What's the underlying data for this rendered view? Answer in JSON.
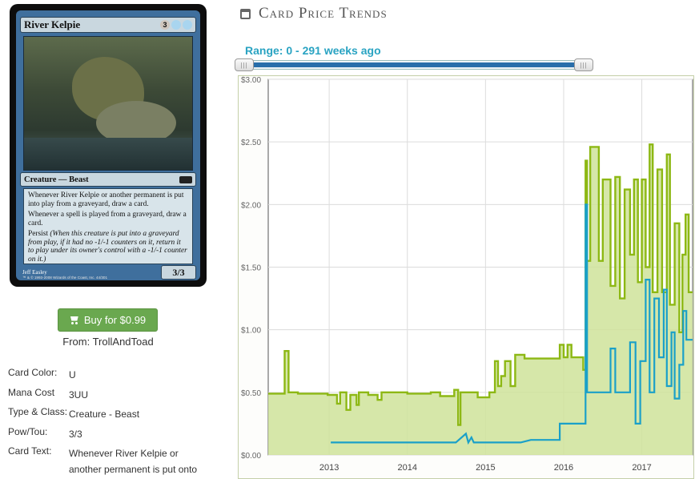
{
  "card": {
    "name": "River Kelpie",
    "mana_cost_symbols": [
      {
        "symbol": "3",
        "kind": "generic"
      },
      {
        "symbol": "U",
        "kind": "blue"
      },
      {
        "symbol": "U",
        "kind": "blue"
      }
    ],
    "type_line": "Creature — Beast",
    "rules_text": [
      "Whenever River Kelpie or another permanent is put into play from a graveyard, draw a card.",
      "Whenever a spell is played from a graveyard, draw a card."
    ],
    "persist_label": "Persist",
    "persist_reminder": "(When this creature is put into a graveyard from play, if it had no -1/-1 counters on it, return it to play under its owner's control with a -1/-1 counter on it.)",
    "power_toughness": "3/3",
    "artist": "Jeff Easley",
    "copyright": "™ & © 1993-2008 Wizards of the Coast, Inc. 44/301"
  },
  "buy": {
    "label": "Buy for $0.99",
    "from": "From: TrollAndToad"
  },
  "attributes": [
    {
      "key": "Card Color:",
      "value": "U"
    },
    {
      "key": "Mana Cost",
      "value": "3UU"
    },
    {
      "key": "Type & Class:",
      "value": "Creature - Beast"
    },
    {
      "key": "Pow/Tou:",
      "value": "3/3"
    },
    {
      "key": "Card Text:",
      "value": "Whenever River Kelpie or another permanent is put onto"
    }
  ],
  "price_section": {
    "title": "Card Price Trends",
    "range_label": "Range: 0 - 291 weeks ago",
    "range_min_weeks": 0,
    "range_max_weeks": 291
  },
  "colors": {
    "retail": "#8db814",
    "retail_fill": "#cfe39a",
    "buylist": "#1aa0c8",
    "slider": "#286eaa",
    "button": "#6aa84f"
  },
  "chart_data": {
    "type": "line",
    "ylim": [
      0,
      3
    ],
    "xlim": [
      2012.22,
      2017.65
    ],
    "y_ticks": [
      "$0.00",
      "$0.50",
      "$1.00",
      "$1.50",
      "$2.00",
      "$2.50",
      "$3.00"
    ],
    "x_ticks": [
      "2013",
      "2014",
      "2015",
      "2016",
      "2017"
    ],
    "grid": true,
    "legend": "none",
    "series": [
      {
        "points": [
          [
            2012.22,
            0.49
          ],
          [
            2012.43,
            0.49
          ],
          [
            2012.43,
            0.83
          ],
          [
            2012.48,
            0.83
          ],
          [
            2012.48,
            0.5
          ],
          [
            2012.6,
            0.5
          ],
          [
            2012.6,
            0.49
          ],
          [
            2012.98,
            0.49
          ],
          [
            2012.98,
            0.48
          ],
          [
            2013.1,
            0.48
          ],
          [
            2013.1,
            0.41
          ],
          [
            2013.14,
            0.41
          ],
          [
            2013.14,
            0.5
          ],
          [
            2013.22,
            0.5
          ],
          [
            2013.22,
            0.36
          ],
          [
            2013.27,
            0.36
          ],
          [
            2013.27,
            0.48
          ],
          [
            2013.35,
            0.48
          ],
          [
            2013.35,
            0.4
          ],
          [
            2013.38,
            0.4
          ],
          [
            2013.38,
            0.5
          ],
          [
            2013.5,
            0.5
          ],
          [
            2013.5,
            0.48
          ],
          [
            2013.62,
            0.48
          ],
          [
            2013.62,
            0.44
          ],
          [
            2013.67,
            0.44
          ],
          [
            2013.67,
            0.5
          ],
          [
            2014.0,
            0.5
          ],
          [
            2014.0,
            0.49
          ],
          [
            2014.3,
            0.49
          ],
          [
            2014.3,
            0.5
          ],
          [
            2014.42,
            0.5
          ],
          [
            2014.42,
            0.47
          ],
          [
            2014.6,
            0.47
          ],
          [
            2014.6,
            0.52
          ],
          [
            2014.65,
            0.52
          ],
          [
            2014.65,
            0.24
          ],
          [
            2014.68,
            0.24
          ],
          [
            2014.68,
            0.5
          ],
          [
            2014.9,
            0.5
          ],
          [
            2014.9,
            0.46
          ],
          [
            2015.05,
            0.46
          ],
          [
            2015.05,
            0.5
          ],
          [
            2015.12,
            0.5
          ],
          [
            2015.12,
            0.75
          ],
          [
            2015.16,
            0.75
          ],
          [
            2015.16,
            0.55
          ],
          [
            2015.2,
            0.55
          ],
          [
            2015.2,
            0.63
          ],
          [
            2015.25,
            0.63
          ],
          [
            2015.25,
            0.75
          ],
          [
            2015.32,
            0.75
          ],
          [
            2015.32,
            0.55
          ],
          [
            2015.38,
            0.55
          ],
          [
            2015.38,
            0.8
          ],
          [
            2015.5,
            0.8
          ],
          [
            2015.5,
            0.77
          ],
          [
            2015.95,
            0.77
          ],
          [
            2015.95,
            0.88
          ],
          [
            2016.0,
            0.88
          ],
          [
            2016.0,
            0.78
          ],
          [
            2016.05,
            0.78
          ],
          [
            2016.05,
            0.88
          ],
          [
            2016.1,
            0.88
          ],
          [
            2016.1,
            0.78
          ],
          [
            2016.25,
            0.78
          ],
          [
            2016.25,
            0.68
          ],
          [
            2016.28,
            0.68
          ],
          [
            2016.28,
            2.35
          ],
          [
            2016.3,
            2.35
          ],
          [
            2016.3,
            1.55
          ],
          [
            2016.34,
            1.55
          ],
          [
            2016.34,
            2.46
          ],
          [
            2016.45,
            2.46
          ],
          [
            2016.45,
            1.55
          ],
          [
            2016.5,
            1.55
          ],
          [
            2016.5,
            2.2
          ],
          [
            2016.6,
            2.2
          ],
          [
            2016.6,
            1.35
          ],
          [
            2016.66,
            1.35
          ],
          [
            2016.66,
            2.22
          ],
          [
            2016.72,
            2.22
          ],
          [
            2016.72,
            1.25
          ],
          [
            2016.78,
            1.25
          ],
          [
            2016.78,
            2.12
          ],
          [
            2016.85,
            2.12
          ],
          [
            2016.85,
            1.6
          ],
          [
            2016.9,
            1.6
          ],
          [
            2016.9,
            2.2
          ],
          [
            2016.95,
            2.2
          ],
          [
            2016.95,
            1.38
          ],
          [
            2017.0,
            1.38
          ],
          [
            2017.0,
            2.2
          ],
          [
            2017.05,
            2.2
          ],
          [
            2017.05,
            1.5
          ],
          [
            2017.1,
            1.5
          ],
          [
            2017.1,
            2.48
          ],
          [
            2017.14,
            2.48
          ],
          [
            2017.14,
            1.3
          ],
          [
            2017.2,
            1.3
          ],
          [
            2017.2,
            2.28
          ],
          [
            2017.26,
            2.28
          ],
          [
            2017.26,
            1.3
          ],
          [
            2017.32,
            1.3
          ],
          [
            2017.32,
            2.4
          ],
          [
            2017.36,
            2.4
          ],
          [
            2017.36,
            1.2
          ],
          [
            2017.42,
            1.2
          ],
          [
            2017.42,
            1.85
          ],
          [
            2017.48,
            1.85
          ],
          [
            2017.48,
            0.98
          ],
          [
            2017.52,
            0.98
          ],
          [
            2017.52,
            1.6
          ],
          [
            2017.56,
            1.6
          ],
          [
            2017.56,
            1.92
          ],
          [
            2017.6,
            1.92
          ],
          [
            2017.6,
            1.3
          ],
          [
            2017.65,
            1.3
          ]
        ]
      },
      {
        "points": [
          [
            2013.02,
            0.1
          ],
          [
            2014.62,
            0.1
          ],
          [
            2014.75,
            0.17
          ],
          [
            2014.78,
            0.1
          ],
          [
            2014.82,
            0.14
          ],
          [
            2014.85,
            0.1
          ],
          [
            2015.45,
            0.1
          ],
          [
            2015.58,
            0.12
          ],
          [
            2015.95,
            0.12
          ],
          [
            2015.95,
            0.25
          ],
          [
            2016.28,
            0.25
          ],
          [
            2016.28,
            2.0
          ],
          [
            2016.3,
            2.0
          ],
          [
            2016.3,
            0.5
          ],
          [
            2016.6,
            0.5
          ],
          [
            2016.6,
            0.85
          ],
          [
            2016.66,
            0.85
          ],
          [
            2016.66,
            0.5
          ],
          [
            2016.85,
            0.5
          ],
          [
            2016.85,
            0.9
          ],
          [
            2016.92,
            0.9
          ],
          [
            2016.92,
            0.25
          ],
          [
            2016.98,
            0.25
          ],
          [
            2016.98,
            0.75
          ],
          [
            2017.05,
            0.75
          ],
          [
            2017.05,
            1.4
          ],
          [
            2017.1,
            1.4
          ],
          [
            2017.1,
            0.5
          ],
          [
            2017.16,
            0.5
          ],
          [
            2017.16,
            1.25
          ],
          [
            2017.22,
            1.25
          ],
          [
            2017.22,
            0.78
          ],
          [
            2017.28,
            0.78
          ],
          [
            2017.28,
            1.32
          ],
          [
            2017.32,
            1.32
          ],
          [
            2017.32,
            0.55
          ],
          [
            2017.38,
            0.55
          ],
          [
            2017.38,
            0.98
          ],
          [
            2017.42,
            0.98
          ],
          [
            2017.42,
            0.45
          ],
          [
            2017.48,
            0.45
          ],
          [
            2017.48,
            0.72
          ],
          [
            2017.53,
            0.72
          ],
          [
            2017.53,
            1.15
          ],
          [
            2017.57,
            1.15
          ],
          [
            2017.57,
            0.92
          ],
          [
            2017.65,
            0.92
          ]
        ]
      }
    ]
  }
}
